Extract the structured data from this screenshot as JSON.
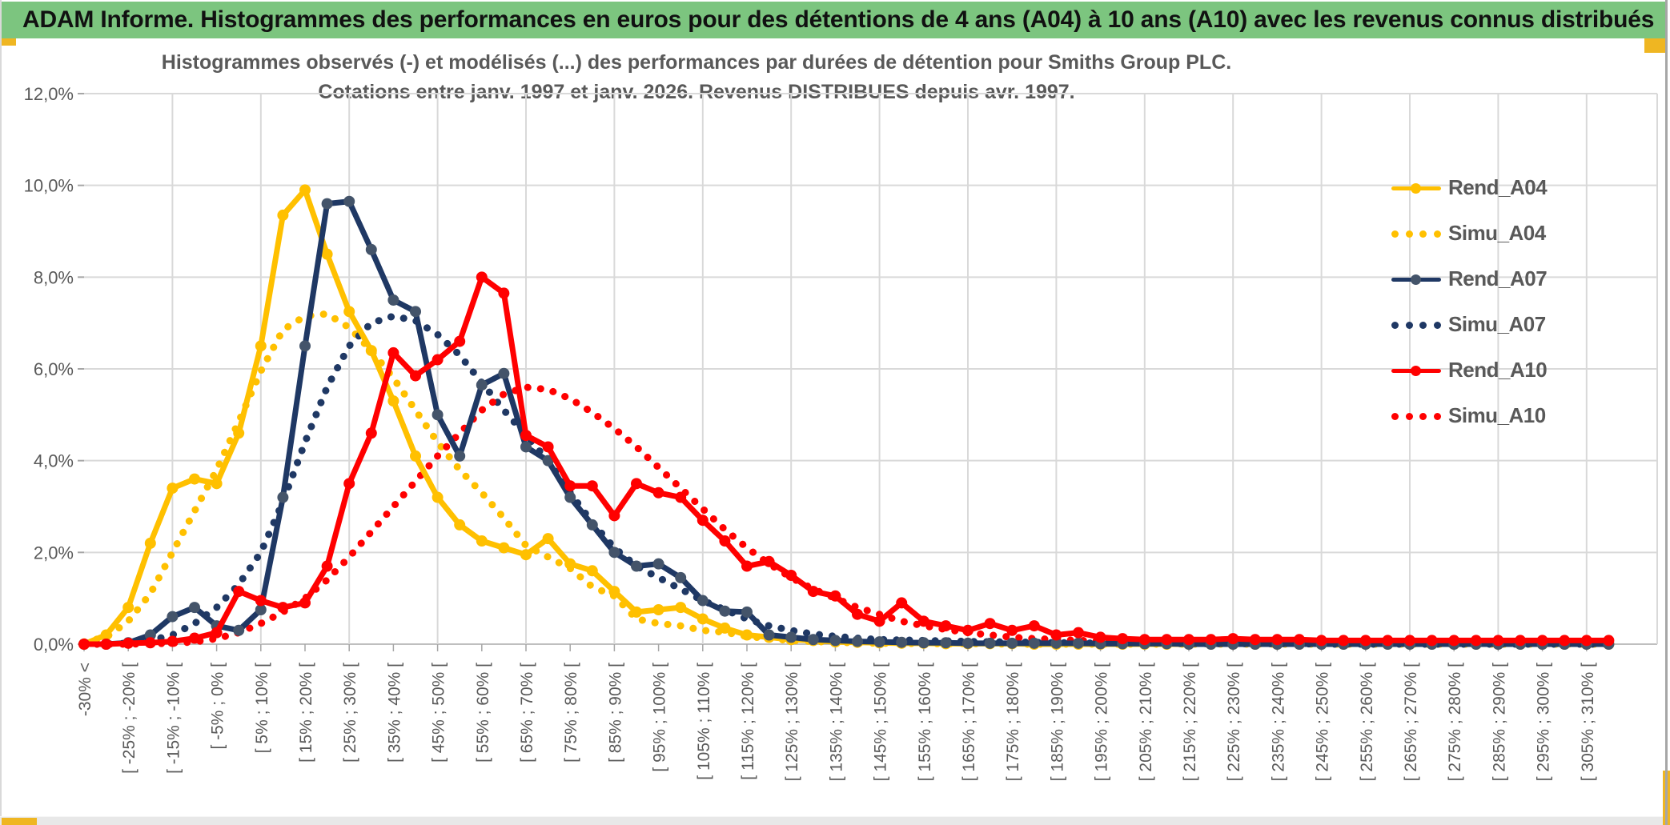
{
  "window": {
    "title": "ADAM Informe. Histogrammes des performances en euros pour des détentions de 4 ans (A04) à 10 ans (A10) avec les revenus connus distribués",
    "header_color": "#7cc57f",
    "accent_gold": "#efb622"
  },
  "chart": {
    "title_line1": "Histogrammes observés (-) et modélisés (...) des performances par durées de détention pour Smiths Group PLC.",
    "title_line2": "Cotations entre janv. 1997 et janv. 2026. Revenus DISTRIBUES depuis avr. 1997.",
    "text_color": "#595959",
    "grid_color": "#d9d9d9",
    "axis_color": "#bfbfbf"
  },
  "legend": {
    "items": [
      {
        "label": "Rend_A04",
        "color": "#FFC000",
        "style": "solid"
      },
      {
        "label": "Simu_A04",
        "color": "#FFC000",
        "style": "dotted"
      },
      {
        "label": "Rend_A07",
        "color": "#1F3864",
        "style": "solid",
        "marker_color": "#44546A"
      },
      {
        "label": "Simu_A07",
        "color": "#1F3864",
        "style": "dotted"
      },
      {
        "label": "Rend_A10",
        "color": "#FF0000",
        "style": "solid"
      },
      {
        "label": "Simu_A10",
        "color": "#FF0000",
        "style": "dotted"
      }
    ]
  },
  "chart_data": {
    "type": "line",
    "title": "Histogrammes observés (-) et modélisés (...) des performances par durées de détention pour Smiths Group PLC. Cotations entre janv. 1997 et janv. 2026. Revenus DISTRIBUES depuis avr. 1997.",
    "ylabel": "",
    "xlabel": "",
    "ylim": [
      0,
      12
    ],
    "grid": true,
    "legend_position": "right",
    "y_tick_labels": [
      "0,0%",
      "2,0%",
      "4,0%",
      "6,0%",
      "8,0%",
      "10,0%",
      "12,0%"
    ],
    "bins_total": 70,
    "x_tick_labels_every_2_bins": [
      "-30% <",
      "[ -25% ; -20% [",
      "[ -15% ; -10% [",
      "[ -5% ; 0% [",
      "[ 5% ; 10% [",
      "[ 15% ; 20% [",
      "[ 25% ; 30% [",
      "[ 35% ; 40% [",
      "[ 45% ; 50% [",
      "[ 55% ; 60% [",
      "[ 65% ; 70% [",
      "[ 75% ; 80% [",
      "[ 85% ; 90% [",
      "[ 95% ; 100% [",
      "[ 105% ; 110% [",
      "[ 115% ; 120% [",
      "[ 125% ; 130% [",
      "[ 135% ; 140% [",
      "[ 145% ; 150% [",
      "[ 155% ; 160% [",
      "[ 165% ; 170% [",
      "[ 175% ; 180% [",
      "[ 185% ; 190% [",
      "[ 195% ; 200% [",
      "[ 205% ; 210% [",
      "[ 215% ; 220% [",
      "[ 225% ; 230% [",
      "[ 235% ; 240% [",
      "[ 245% ; 250% [",
      "[ 255% ; 260% [",
      "[ 265% ; 270% [",
      "[ 275% ; 280% [",
      "[ 285% ; 290% [",
      "[ 295% ; 300% [",
      "[ 305% ; 310% ["
    ],
    "series": [
      {
        "name": "Rend_A04",
        "style": "solid",
        "color": "#FFC000",
        "marker_color": "#FFC000",
        "values": [
          0,
          0.2,
          0.8,
          2.2,
          3.4,
          3.6,
          3.5,
          4.6,
          6.5,
          9.35,
          9.9,
          8.5,
          7.25,
          6.4,
          5.3,
          4.1,
          3.2,
          2.6,
          2.25,
          2.1,
          1.95,
          2.3,
          1.75,
          1.6,
          1.15,
          0.7,
          0.75,
          0.8,
          0.55,
          0.35,
          0.2,
          0.15,
          0.1,
          0.08,
          0.05,
          0.04,
          0.03,
          0.02,
          0.02,
          0.01,
          0.01,
          0.01,
          0.01,
          0,
          0,
          0,
          0,
          0,
          0,
          0,
          0,
          0,
          0,
          0,
          0,
          0,
          0,
          0,
          0,
          0,
          0,
          0,
          0,
          0,
          0,
          0,
          0,
          0,
          0,
          0
        ]
      },
      {
        "name": "Simu_A04",
        "style": "dotted",
        "color": "#FFC000",
        "values": [
          0.05,
          0.15,
          0.5,
          1.1,
          2.0,
          2.9,
          3.8,
          4.85,
          5.95,
          6.85,
          7.15,
          7.2,
          6.9,
          6.4,
          5.8,
          5.1,
          4.4,
          3.8,
          3.3,
          2.75,
          2.15,
          1.9,
          1.65,
          1.25,
          1.05,
          0.55,
          0.45,
          0.4,
          0.3,
          0.26,
          0.17,
          0.12,
          0.08,
          0.06,
          0.04,
          0.03,
          0.02,
          0.02,
          0.01,
          0.01,
          0.01,
          0.01,
          0,
          0,
          0,
          0,
          0,
          0,
          0,
          0,
          0,
          0,
          0,
          0,
          0,
          0,
          0,
          0,
          0,
          0,
          0,
          0,
          0,
          0,
          0,
          0,
          0,
          0,
          0,
          0
        ]
      },
      {
        "name": "Rend_A07",
        "style": "solid",
        "color": "#1F3864",
        "marker_color": "#44546A",
        "values": [
          0,
          0,
          0.03,
          0.2,
          0.6,
          0.8,
          0.4,
          0.3,
          0.75,
          3.2,
          6.5,
          9.6,
          9.65,
          8.6,
          7.5,
          7.25,
          5.0,
          4.1,
          5.65,
          5.9,
          4.3,
          4.0,
          3.2,
          2.6,
          2.0,
          1.7,
          1.75,
          1.45,
          0.95,
          0.72,
          0.7,
          0.2,
          0.15,
          0.1,
          0.08,
          0.06,
          0.05,
          0.04,
          0.03,
          0.03,
          0.02,
          0.02,
          0.02,
          0.02,
          0.02,
          0.02,
          0.01,
          0.01,
          0.01,
          0.01,
          0,
          0,
          0,
          0,
          0,
          0,
          0,
          0,
          0,
          0,
          0,
          0,
          0,
          0,
          0,
          0,
          0,
          0,
          0,
          0
        ]
      },
      {
        "name": "Simu_A07",
        "style": "dotted",
        "color": "#1F3864",
        "values": [
          0,
          0,
          0.02,
          0.08,
          0.2,
          0.45,
          0.8,
          1.3,
          2.0,
          3.1,
          4.4,
          5.6,
          6.5,
          7.0,
          7.15,
          7.05,
          6.75,
          6.3,
          5.7,
          5.1,
          4.55,
          4.0,
          3.3,
          2.65,
          2.1,
          1.7,
          1.45,
          1.2,
          0.95,
          0.75,
          0.55,
          0.4,
          0.3,
          0.22,
          0.17,
          0.13,
          0.1,
          0.09,
          0.08,
          0.07,
          0.06,
          0.05,
          0.05,
          0.04,
          0.03,
          0.03,
          0.02,
          0.02,
          0.02,
          0.01,
          0.01,
          0.01,
          0.01,
          0.01,
          0.01,
          0.01,
          0,
          0,
          0,
          0,
          0,
          0,
          0,
          0,
          0,
          0,
          0,
          0,
          0,
          0
        ]
      },
      {
        "name": "Rend_A10",
        "style": "solid",
        "color": "#FF0000",
        "marker_color": "#FF0000",
        "values": [
          0,
          0,
          0.02,
          0.03,
          0.06,
          0.13,
          0.25,
          1.15,
          0.95,
          0.8,
          0.9,
          1.7,
          3.5,
          4.6,
          6.35,
          5.85,
          6.2,
          6.6,
          8.0,
          7.65,
          4.55,
          4.3,
          3.45,
          3.45,
          2.8,
          3.5,
          3.3,
          3.2,
          2.7,
          2.25,
          1.7,
          1.8,
          1.5,
          1.15,
          1.05,
          0.65,
          0.5,
          0.9,
          0.5,
          0.4,
          0.3,
          0.45,
          0.3,
          0.4,
          0.2,
          0.25,
          0.15,
          0.12,
          0.1,
          0.1,
          0.1,
          0.1,
          0.12,
          0.1,
          0.1,
          0.1,
          0.08,
          0.08,
          0.08,
          0.08,
          0.08,
          0.08,
          0.08,
          0.08,
          0.08,
          0.08,
          0.08,
          0.08,
          0.08,
          0.08
        ]
      },
      {
        "name": "Simu_A10",
        "style": "dotted",
        "color": "#FF0000",
        "values": [
          0,
          0,
          0,
          0.01,
          0.02,
          0.05,
          0.12,
          0.25,
          0.45,
          0.7,
          1.0,
          1.4,
          1.9,
          2.45,
          3.0,
          3.55,
          4.1,
          4.6,
          5.1,
          5.45,
          5.6,
          5.55,
          5.35,
          5.05,
          4.7,
          4.3,
          3.85,
          3.4,
          2.95,
          2.5,
          2.1,
          1.75,
          1.45,
          1.2,
          1.0,
          0.8,
          0.65,
          0.5,
          0.4,
          0.32,
          0.25,
          0.2,
          0.15,
          0.12,
          0.1,
          0.08,
          0.07,
          0.06,
          0.05,
          0.05,
          0.04,
          0.04,
          0.03,
          0.03,
          0.03,
          0.02,
          0.02,
          0.02,
          0.02,
          0.02,
          0.02,
          0.02,
          0.02,
          0.02,
          0.02,
          0.02,
          0.02,
          0.02,
          0.02,
          0.02
        ]
      }
    ]
  }
}
